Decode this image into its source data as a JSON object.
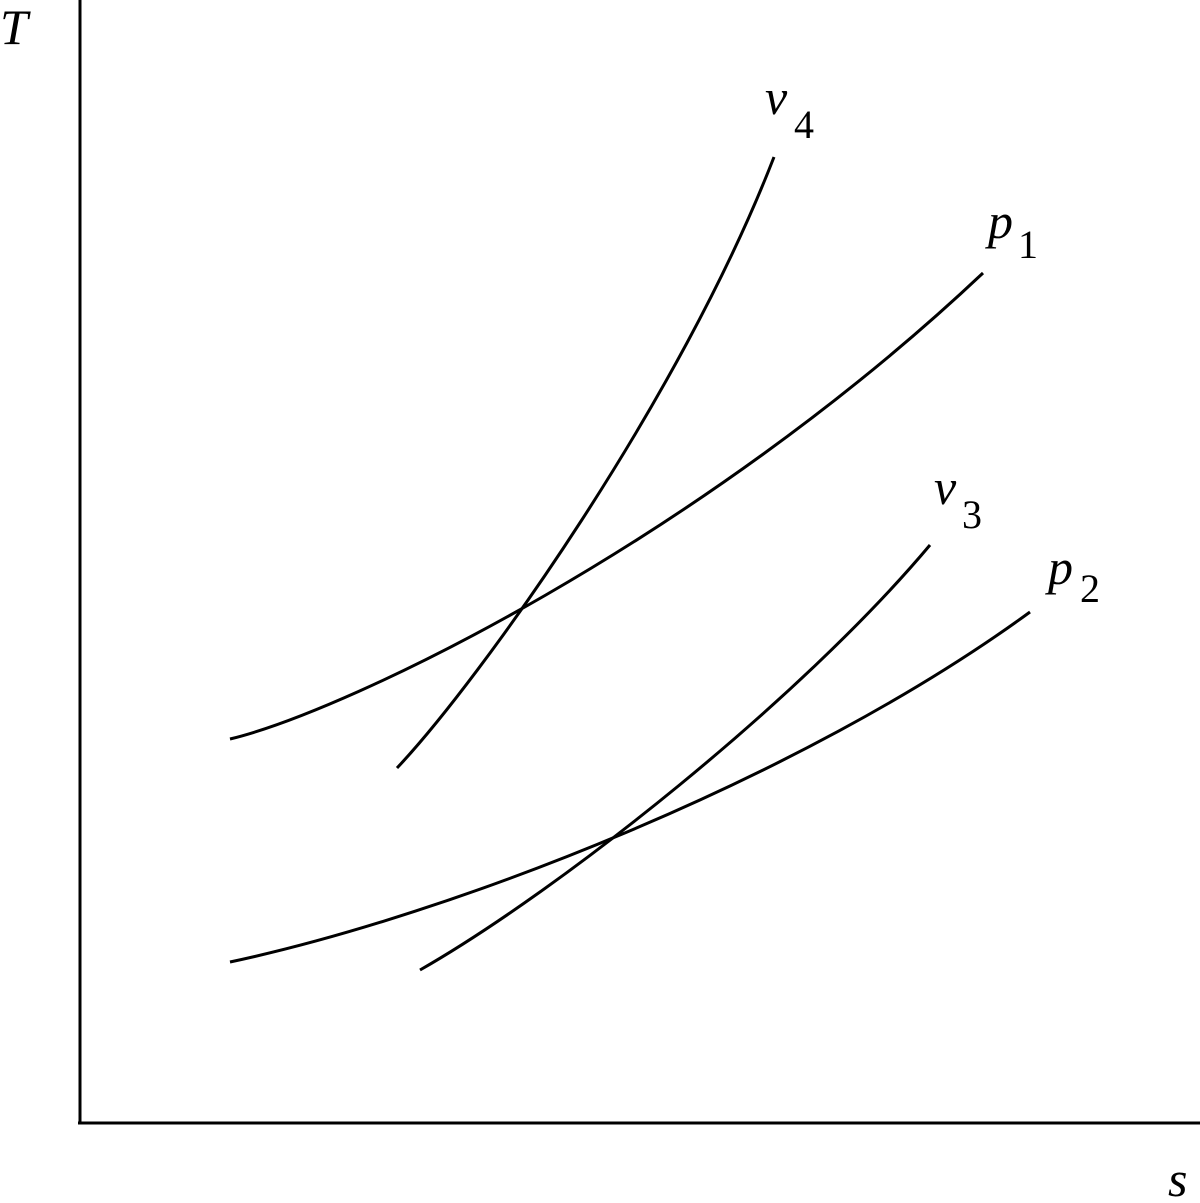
{
  "axes": {
    "y_label": "T",
    "x_label": "s"
  },
  "curves": [
    {
      "symbol": "v",
      "subscript": "4"
    },
    {
      "symbol": "p",
      "subscript": "1"
    },
    {
      "symbol": "v",
      "subscript": "3"
    },
    {
      "symbol": "p",
      "subscript": "2"
    }
  ]
}
